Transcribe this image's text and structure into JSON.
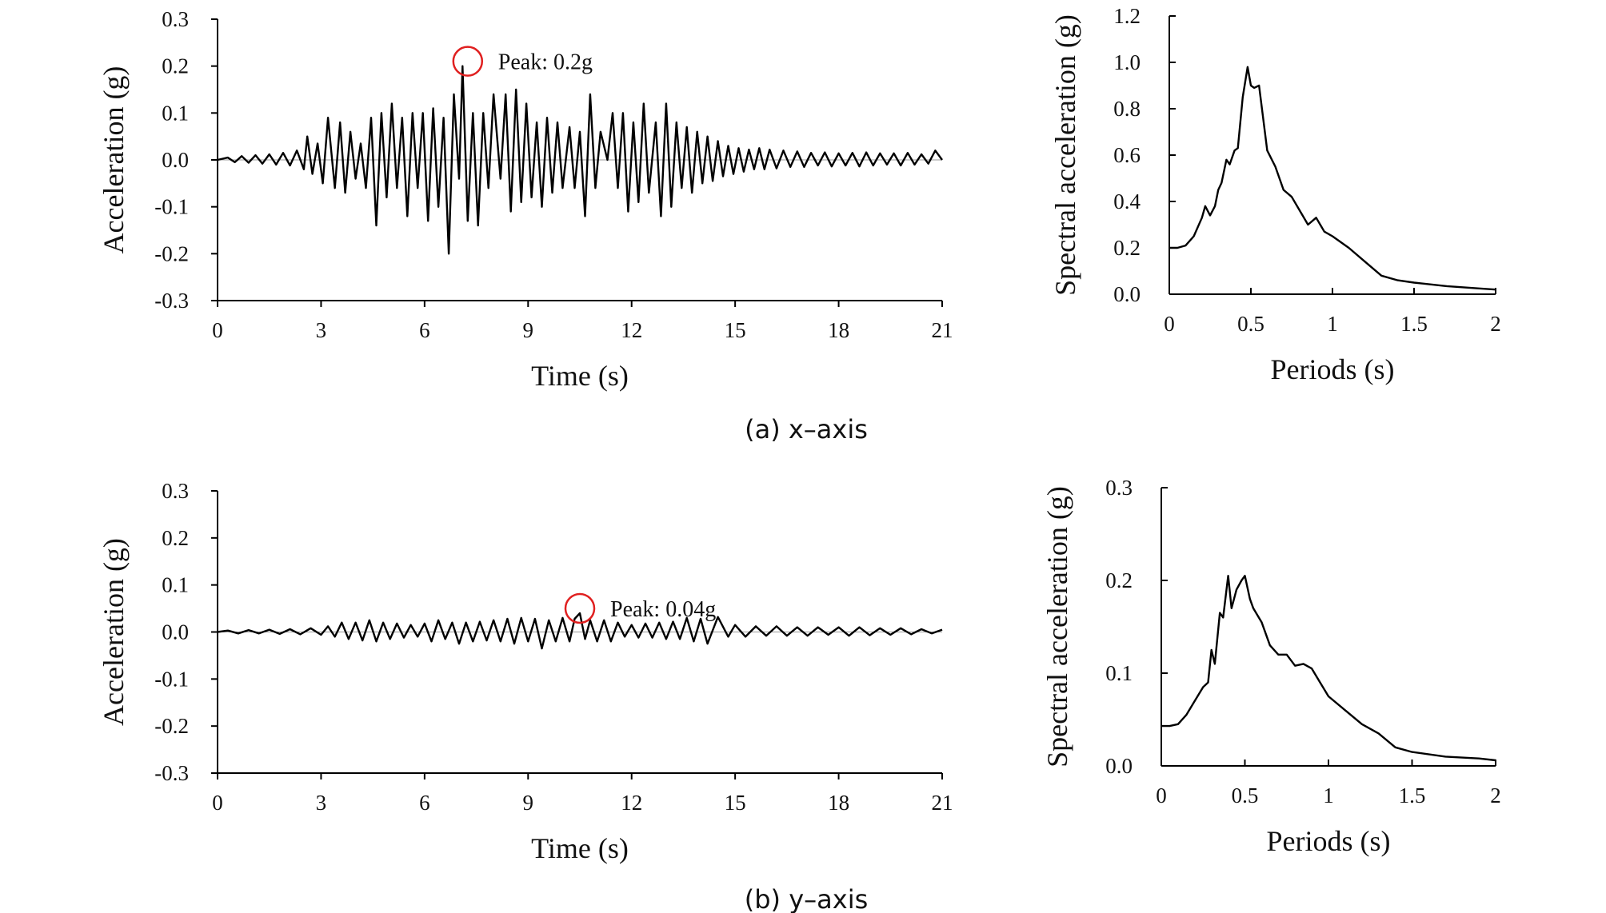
{
  "captions": [
    "(a) x–axis",
    "(b) y–axis"
  ],
  "chart_data": [
    {
      "type": "line",
      "xlabel": "Time (s)",
      "ylabel": "Acceleration (g)",
      "xlim": [
        0,
        21
      ],
      "ylim": [
        -0.3,
        0.3
      ],
      "xticks": [
        "0",
        "3",
        "6",
        "9",
        "12",
        "15",
        "18",
        "21"
      ],
      "yticks": [
        "0.3",
        "0.2",
        "0.1",
        "0.0",
        "-0.1",
        "-0.2",
        "-0.3"
      ],
      "annotation": {
        "text": "Peak: 0.2g",
        "x": 7.25,
        "y": 0.2
      },
      "series": [
        {
          "x": [
            0,
            0.3,
            0.5,
            0.7,
            0.9,
            1.1,
            1.3,
            1.5,
            1.7,
            1.9,
            2.1,
            2.3,
            2.5,
            2.6,
            2.75,
            2.9,
            3.05,
            3.2,
            3.4,
            3.55,
            3.7,
            3.85,
            4.0,
            4.15,
            4.3,
            4.45,
            4.6,
            4.75,
            4.9,
            5.05,
            5.2,
            5.35,
            5.5,
            5.65,
            5.8,
            5.95,
            6.1,
            6.25,
            6.4,
            6.55,
            6.7,
            6.85,
            7.0,
            7.1,
            7.25,
            7.4,
            7.55,
            7.7,
            7.85,
            8.0,
            8.2,
            8.35,
            8.5,
            8.65,
            8.8,
            8.95,
            9.1,
            9.25,
            9.4,
            9.55,
            9.7,
            9.85,
            10.0,
            10.2,
            10.35,
            10.5,
            10.65,
            10.8,
            10.95,
            11.1,
            11.3,
            11.45,
            11.6,
            11.75,
            11.9,
            12.05,
            12.2,
            12.35,
            12.5,
            12.7,
            12.85,
            13.0,
            13.15,
            13.3,
            13.45,
            13.6,
            13.75,
            13.9,
            14.05,
            14.2,
            14.35,
            14.5,
            14.65,
            14.8,
            14.95,
            15.1,
            15.25,
            15.4,
            15.55,
            15.7,
            15.85,
            16.0,
            16.2,
            16.4,
            16.6,
            16.8,
            17.0,
            17.2,
            17.4,
            17.6,
            17.8,
            18.0,
            18.2,
            18.4,
            18.6,
            18.8,
            19.0,
            19.2,
            19.4,
            19.6,
            19.8,
            20.0,
            20.2,
            20.4,
            20.6,
            20.8,
            21
          ],
          "y": [
            0,
            0.005,
            -0.005,
            0.008,
            -0.006,
            0.01,
            -0.008,
            0.012,
            -0.01,
            0.015,
            -0.012,
            0.02,
            -0.02,
            0.05,
            -0.03,
            0.035,
            -0.05,
            0.09,
            -0.06,
            0.08,
            -0.07,
            0.06,
            -0.04,
            0.035,
            -0.06,
            0.09,
            -0.14,
            0.1,
            -0.08,
            0.12,
            -0.06,
            0.09,
            -0.12,
            0.1,
            -0.06,
            0.1,
            -0.13,
            0.11,
            -0.1,
            0.09,
            -0.2,
            0.14,
            -0.04,
            0.2,
            -0.13,
            0.1,
            -0.14,
            0.1,
            -0.06,
            0.14,
            -0.04,
            0.14,
            -0.11,
            0.15,
            -0.09,
            0.12,
            -0.08,
            0.08,
            -0.1,
            0.09,
            -0.07,
            0.08,
            -0.06,
            0.07,
            -0.06,
            0.06,
            -0.12,
            0.14,
            -0.06,
            0.06,
            0.0,
            0.1,
            -0.06,
            0.1,
            -0.11,
            0.08,
            -0.09,
            0.12,
            -0.07,
            0.08,
            -0.12,
            0.12,
            -0.1,
            0.08,
            -0.06,
            0.07,
            -0.07,
            0.06,
            -0.05,
            0.05,
            -0.045,
            0.04,
            -0.035,
            0.03,
            -0.03,
            0.025,
            -0.025,
            0.022,
            -0.02,
            0.025,
            -0.02,
            0.022,
            -0.018,
            0.02,
            -0.015,
            0.018,
            -0.015,
            0.015,
            -0.012,
            0.016,
            -0.014,
            0.014,
            -0.012,
            0.015,
            -0.014,
            0.016,
            -0.012,
            0.014,
            -0.01,
            0.014,
            -0.012,
            0.015,
            -0.01,
            0.012,
            -0.008,
            0.02,
            0
          ]
        }
      ]
    },
    {
      "type": "line",
      "xlabel": "Periods (s)",
      "ylabel": "Spectral acceleration (g)",
      "xlim": [
        0,
        2
      ],
      "ylim": [
        0,
        1.2
      ],
      "xticks": [
        "0",
        "0.5",
        "1",
        "1.5",
        "2"
      ],
      "yticks": [
        "1.2",
        "1.0",
        "0.8",
        "0.6",
        "0.4",
        "0.2",
        "0.0"
      ],
      "series": [
        {
          "x": [
            0,
            0.05,
            0.1,
            0.15,
            0.2,
            0.22,
            0.25,
            0.28,
            0.3,
            0.32,
            0.35,
            0.37,
            0.4,
            0.42,
            0.45,
            0.48,
            0.5,
            0.52,
            0.55,
            0.6,
            0.65,
            0.7,
            0.75,
            0.8,
            0.85,
            0.9,
            0.95,
            1.0,
            1.1,
            1.2,
            1.3,
            1.4,
            1.5,
            1.7,
            1.9,
            2.0
          ],
          "y": [
            0.2,
            0.2,
            0.21,
            0.25,
            0.33,
            0.38,
            0.34,
            0.38,
            0.45,
            0.48,
            0.58,
            0.56,
            0.62,
            0.63,
            0.85,
            0.98,
            0.9,
            0.89,
            0.9,
            0.62,
            0.55,
            0.45,
            0.42,
            0.36,
            0.3,
            0.33,
            0.27,
            0.25,
            0.2,
            0.14,
            0.08,
            0.06,
            0.05,
            0.035,
            0.025,
            0.02
          ]
        }
      ]
    },
    {
      "type": "line",
      "xlabel": "Time (s)",
      "ylabel": "Acceleration (g)",
      "xlim": [
        0,
        21
      ],
      "ylim": [
        -0.3,
        0.3
      ],
      "xticks": [
        "0",
        "3",
        "6",
        "9",
        "12",
        "15",
        "18",
        "21"
      ],
      "yticks": [
        "0.3",
        "0.2",
        "0.1",
        "0.0",
        "-0.1",
        "-0.2",
        "-0.3"
      ],
      "annotation": {
        "text": "Peak: 0.04g",
        "x": 10.5,
        "y": 0.04
      },
      "series": [
        {
          "x": [
            0,
            0.3,
            0.6,
            0.9,
            1.2,
            1.5,
            1.8,
            2.1,
            2.4,
            2.7,
            3.0,
            3.2,
            3.4,
            3.6,
            3.8,
            4.0,
            4.2,
            4.4,
            4.6,
            4.8,
            5.0,
            5.2,
            5.4,
            5.6,
            5.8,
            6.0,
            6.2,
            6.4,
            6.6,
            6.8,
            7.0,
            7.2,
            7.4,
            7.6,
            7.8,
            8.0,
            8.2,
            8.4,
            8.6,
            8.8,
            9.0,
            9.2,
            9.4,
            9.6,
            9.8,
            10.0,
            10.2,
            10.35,
            10.5,
            10.65,
            10.8,
            11.0,
            11.2,
            11.4,
            11.6,
            11.8,
            12.0,
            12.2,
            12.4,
            12.6,
            12.8,
            13.0,
            13.2,
            13.4,
            13.6,
            13.8,
            14.0,
            14.2,
            14.5,
            14.8,
            15.0,
            15.3,
            15.6,
            15.9,
            16.2,
            16.5,
            16.8,
            17.1,
            17.4,
            17.7,
            18.0,
            18.3,
            18.6,
            18.9,
            19.2,
            19.5,
            19.8,
            20.1,
            20.4,
            20.7,
            21
          ],
          "y": [
            0,
            0.003,
            -0.003,
            0.004,
            -0.003,
            0.005,
            -0.004,
            0.006,
            -0.005,
            0.008,
            -0.006,
            0.012,
            -0.01,
            0.02,
            -0.015,
            0.02,
            -0.018,
            0.025,
            -0.02,
            0.02,
            -0.015,
            0.018,
            -0.012,
            0.015,
            -0.01,
            0.018,
            -0.02,
            0.025,
            -0.015,
            0.02,
            -0.025,
            0.02,
            -0.02,
            0.022,
            -0.018,
            0.025,
            -0.02,
            0.028,
            -0.025,
            0.03,
            -0.02,
            0.028,
            -0.035,
            0.025,
            -0.02,
            0.03,
            -0.02,
            0.028,
            0.04,
            -0.015,
            0.025,
            -0.02,
            0.025,
            -0.02,
            0.02,
            -0.01,
            0.015,
            -0.012,
            0.018,
            -0.012,
            0.02,
            -0.015,
            0.022,
            -0.015,
            0.03,
            -0.02,
            0.028,
            -0.025,
            0.032,
            -0.01,
            0.015,
            -0.01,
            0.012,
            -0.008,
            0.012,
            -0.008,
            0.01,
            -0.008,
            0.01,
            -0.006,
            0.01,
            -0.008,
            0.01,
            -0.007,
            0.008,
            -0.006,
            0.008,
            -0.005,
            0.006,
            -0.003,
            0.005
          ]
        }
      ]
    },
    {
      "type": "line",
      "xlabel": "Periods (s)",
      "ylabel": "Spectral acceleration (g)",
      "xlim": [
        0,
        2
      ],
      "ylim": [
        0,
        0.3
      ],
      "xticks": [
        "0",
        "0.5",
        "1",
        "1.5",
        "2"
      ],
      "yticks": [
        "0.3",
        "0.2",
        "0.1",
        "0.0"
      ],
      "series": [
        {
          "x": [
            0,
            0.05,
            0.1,
            0.15,
            0.2,
            0.25,
            0.28,
            0.3,
            0.32,
            0.35,
            0.37,
            0.4,
            0.42,
            0.45,
            0.48,
            0.5,
            0.53,
            0.55,
            0.6,
            0.65,
            0.7,
            0.75,
            0.8,
            0.85,
            0.9,
            0.95,
            1.0,
            1.1,
            1.2,
            1.3,
            1.4,
            1.5,
            1.7,
            1.9,
            2.0
          ],
          "y": [
            0.043,
            0.043,
            0.045,
            0.055,
            0.07,
            0.085,
            0.09,
            0.125,
            0.11,
            0.165,
            0.16,
            0.205,
            0.17,
            0.19,
            0.2,
            0.205,
            0.18,
            0.17,
            0.155,
            0.13,
            0.12,
            0.12,
            0.108,
            0.11,
            0.105,
            0.09,
            0.075,
            0.06,
            0.045,
            0.035,
            0.02,
            0.015,
            0.01,
            0.008,
            0.006
          ]
        }
      ]
    }
  ]
}
